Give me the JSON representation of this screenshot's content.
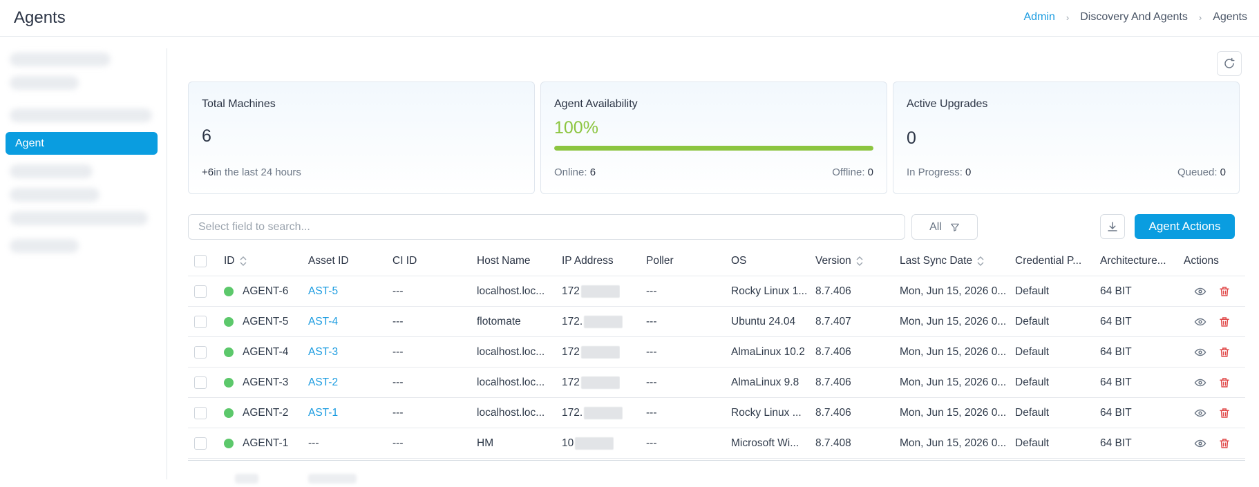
{
  "header": {
    "title": "Agents",
    "breadcrumb": [
      "Admin",
      "Discovery And Agents",
      "Agents"
    ]
  },
  "sidebar": {
    "active_item": "Agent"
  },
  "cards": {
    "total_machines": {
      "label": "Total Machines",
      "value": "6",
      "delta": "+6",
      "delta_text": "in the last 24 hours"
    },
    "agent_availability": {
      "label": "Agent Availability",
      "value": "100%",
      "progress_percent": 100,
      "online_label": "Online:",
      "online_value": "6",
      "offline_label": "Offline:",
      "offline_value": "0"
    },
    "active_upgrades": {
      "label": "Active Upgrades",
      "value": "0",
      "in_progress_label": "In Progress:",
      "in_progress_value": "0",
      "queued_label": "Queued:",
      "queued_value": "0"
    }
  },
  "toolbar": {
    "search_placeholder": "Select field to search...",
    "filter_label": "All",
    "primary_action": "Agent Actions"
  },
  "table": {
    "columns": [
      "ID",
      "Asset ID",
      "CI ID",
      "Host Name",
      "IP Address",
      "Poller",
      "OS",
      "Version",
      "Last Sync Date",
      "Credential P...",
      "Architecture...",
      "Actions"
    ],
    "rows": [
      {
        "id": "AGENT-6",
        "asset_id": "AST-5",
        "ci_id": "---",
        "host": "localhost.loc...",
        "ip": "172",
        "poller": "---",
        "os": "Rocky Linux 1...",
        "version": "8.7.406",
        "sync": "Mon, Jun 15, 2026 0...",
        "cred": "Default",
        "arch": "64 BIT"
      },
      {
        "id": "AGENT-5",
        "asset_id": "AST-4",
        "ci_id": "---",
        "host": "flotomate",
        "ip": "172.",
        "poller": "---",
        "os": "Ubuntu 24.04",
        "version": "8.7.407",
        "sync": "Mon, Jun 15, 2026 0...",
        "cred": "Default",
        "arch": "64 BIT"
      },
      {
        "id": "AGENT-4",
        "asset_id": "AST-3",
        "ci_id": "---",
        "host": "localhost.loc...",
        "ip": "172",
        "poller": "---",
        "os": "AlmaLinux 10.2",
        "version": "8.7.406",
        "sync": "Mon, Jun 15, 2026 0...",
        "cred": "Default",
        "arch": "64 BIT"
      },
      {
        "id": "AGENT-3",
        "asset_id": "AST-2",
        "ci_id": "---",
        "host": "localhost.loc...",
        "ip": "172",
        "poller": "---",
        "os": "AlmaLinux 9.8",
        "version": "8.7.406",
        "sync": "Mon, Jun 15, 2026 0...",
        "cred": "Default",
        "arch": "64 BIT"
      },
      {
        "id": "AGENT-2",
        "asset_id": "AST-1",
        "ci_id": "---",
        "host": "localhost.loc...",
        "ip": "172.",
        "poller": "---",
        "os": "Rocky Linux ...",
        "version": "8.7.406",
        "sync": "Mon, Jun 15, 2026 0...",
        "cred": "Default",
        "arch": "64 BIT"
      },
      {
        "id": "AGENT-1",
        "asset_id": "---",
        "ci_id": "---",
        "host": "HM",
        "ip": "10",
        "poller": "---",
        "os": "Microsoft Wi...",
        "version": "8.7.408",
        "sync": "Mon, Jun 15, 2026 0...",
        "cred": "Default",
        "arch": "64 BIT"
      }
    ]
  },
  "colors": {
    "accent": "#0a9de0",
    "online": "#5cc86b",
    "availability": "#8cc540",
    "delete": "#e04848"
  },
  "icons": {
    "refresh": "refresh-icon",
    "filter": "filter-icon",
    "download": "download-icon",
    "sort": "sort-icon",
    "view": "eye-icon",
    "delete": "trash-icon"
  }
}
